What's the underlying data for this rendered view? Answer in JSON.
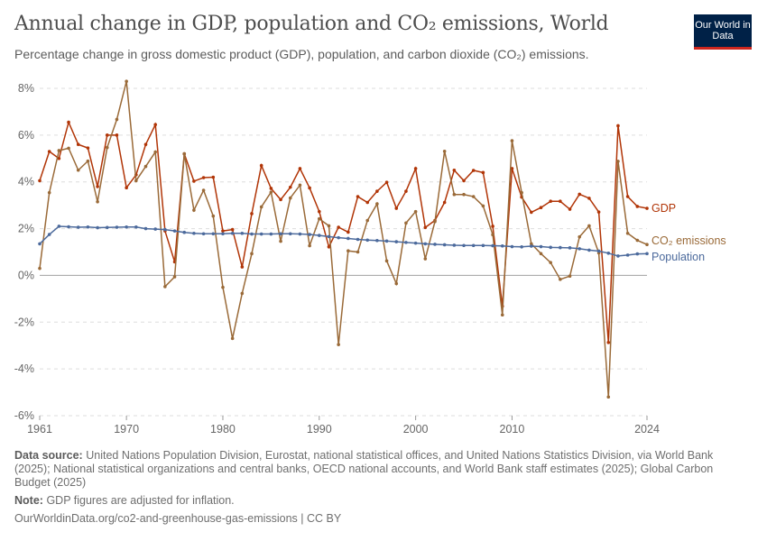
{
  "header": {
    "title": "Annual change in GDP, population and CO₂ emissions, World",
    "subtitle": "Percentage change in gross domestic product (GDP), population, and carbon dioxide (CO₂) emissions.",
    "logo": "Our World in Data"
  },
  "footer": {
    "source_label": "Data source:",
    "source_text": "United Nations Population Division, Eurostat, national statistical offices, and United Nations Statistics Division, via World Bank (2025); National statistical organizations and central banks, OECD national accounts, and World Bank staff estimates (2025); Global Carbon Budget (2025)",
    "note_label": "Note:",
    "note_text": "GDP figures are adjusted for inflation.",
    "url": "OurWorldinData.org/co2-and-greenhouse-gas-emissions | CC BY"
  },
  "chart_data": {
    "type": "line",
    "title": "Annual change in GDP, population and CO₂ emissions, World",
    "xlim": [
      1961,
      2024
    ],
    "ylim": [
      -6,
      8
    ],
    "grid": true,
    "legend": "right (inline labels)",
    "x_ticks": [
      "1961",
      "1970",
      "1980",
      "1990",
      "2000",
      "2010",
      "2024"
    ],
    "y_ticks": [
      "-6%",
      "-4%",
      "-2%",
      "0%",
      "2%",
      "4%",
      "6%",
      "8%"
    ],
    "x_start": 1961,
    "series": [
      {
        "name": "GDP",
        "color": "#b13507",
        "values": [
          4.05,
          5.3,
          5.0,
          6.55,
          5.6,
          5.45,
          3.8,
          6.0,
          6.0,
          3.75,
          4.3,
          5.6,
          6.45,
          1.9,
          0.58,
          5.2,
          4.03,
          4.18,
          4.2,
          1.9,
          1.96,
          0.36,
          2.64,
          4.7,
          3.72,
          3.24,
          3.77,
          4.57,
          3.74,
          2.73,
          1.22,
          2.06,
          1.85,
          3.37,
          3.12,
          3.6,
          3.98,
          2.87,
          3.6,
          4.57,
          2.05,
          2.35,
          3.12,
          4.5,
          4.05,
          4.49,
          4.4,
          2.1,
          -1.32,
          4.57,
          3.35,
          2.7,
          2.9,
          3.17,
          3.17,
          2.83,
          3.47,
          3.3,
          2.71,
          -2.87,
          6.4,
          3.37,
          2.95,
          2.87
        ]
      },
      {
        "name": "CO₂ emissions",
        "color": "#9a6a38",
        "values": [
          0.3,
          3.54,
          5.34,
          5.44,
          4.5,
          4.89,
          3.15,
          5.47,
          6.67,
          8.3,
          4.05,
          4.66,
          5.28,
          -0.48,
          -0.06,
          5.2,
          2.79,
          3.64,
          2.54,
          -0.51,
          -2.7,
          -0.77,
          0.93,
          2.93,
          3.56,
          1.46,
          3.31,
          3.86,
          1.27,
          2.42,
          2.12,
          -2.96,
          1.05,
          1.0,
          2.35,
          3.06,
          0.62,
          -0.35,
          2.24,
          2.73,
          0.71,
          2.3,
          5.31,
          3.46,
          3.46,
          3.37,
          2.97,
          1.74,
          -1.69,
          5.76,
          3.54,
          1.35,
          0.93,
          0.55,
          -0.17,
          -0.03,
          1.65,
          2.12,
          0.96,
          -5.2,
          4.88,
          1.8,
          1.5,
          1.32
        ]
      },
      {
        "name": "Population",
        "color": "#4c6a9c",
        "values": [
          1.35,
          1.75,
          2.1,
          2.08,
          2.06,
          2.07,
          2.04,
          2.05,
          2.06,
          2.07,
          2.07,
          2.0,
          1.98,
          1.96,
          1.9,
          1.84,
          1.8,
          1.78,
          1.78,
          1.78,
          1.8,
          1.8,
          1.77,
          1.77,
          1.77,
          1.78,
          1.78,
          1.77,
          1.75,
          1.71,
          1.66,
          1.61,
          1.58,
          1.54,
          1.51,
          1.49,
          1.47,
          1.44,
          1.41,
          1.38,
          1.35,
          1.33,
          1.31,
          1.29,
          1.28,
          1.28,
          1.28,
          1.27,
          1.26,
          1.23,
          1.22,
          1.25,
          1.23,
          1.2,
          1.19,
          1.18,
          1.14,
          1.08,
          1.04,
          0.95,
          0.83,
          0.87,
          0.92,
          0.93
        ]
      }
    ]
  }
}
